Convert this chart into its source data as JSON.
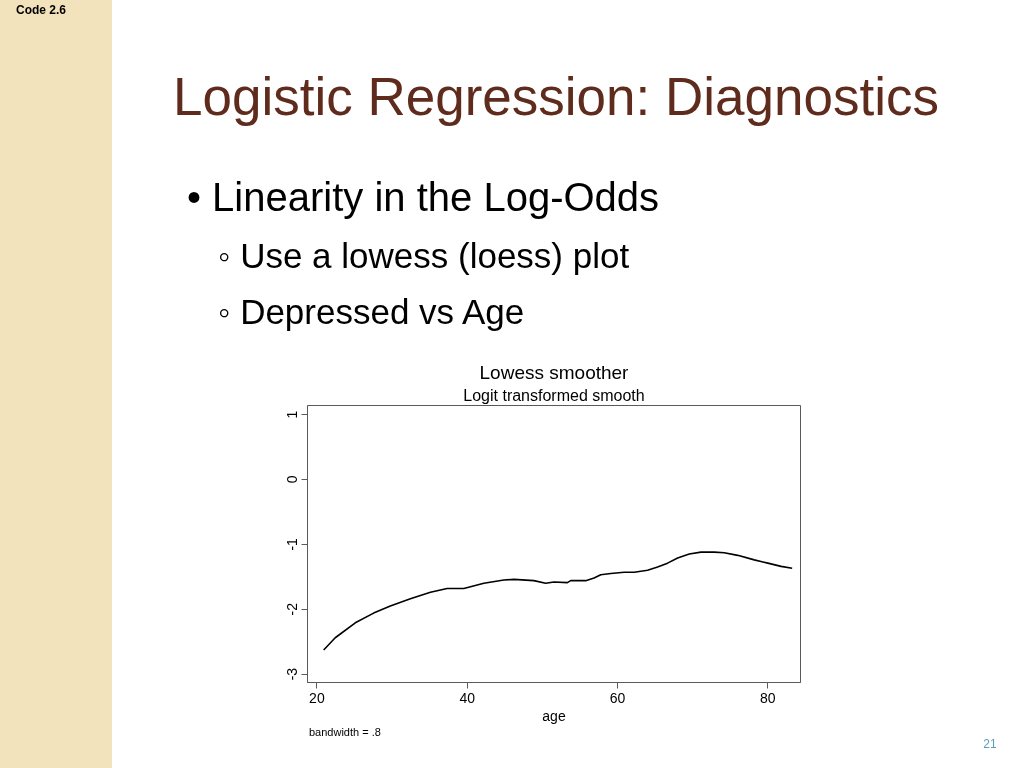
{
  "chart_data": {
    "type": "line",
    "title": "Lowess smoother",
    "subtitle": "Logit transformed smooth",
    "xlabel": "age",
    "x": [
      20.9,
      22.44,
      25.11,
      27.55,
      29.77,
      32.44,
      35.11,
      37.33,
      39.55,
      42.22,
      44.88,
      46.22,
      48.88,
      50.44,
      51.55,
      53.33,
      53.77,
      55.77,
      56.88,
      57.77,
      59.11,
      60.88,
      62.22,
      64.0,
      65.33,
      66.66,
      68.0,
      69.55,
      71.1,
      72.88,
      74.2,
      76.0,
      78.2,
      80.0,
      81.77,
      83.24
    ],
    "series": [
      {
        "color": "#000000",
        "values": [
          -2.63,
          -2.44,
          -2.21,
          -2.06,
          -1.95,
          -1.84,
          -1.74,
          -1.68,
          -1.68,
          -1.6,
          -1.55,
          -1.54,
          -1.56,
          -1.6,
          -1.58,
          -1.59,
          -1.56,
          -1.56,
          -1.52,
          -1.47,
          -1.45,
          -1.43,
          -1.43,
          -1.4,
          -1.35,
          -1.29,
          -1.21,
          -1.15,
          -1.12,
          -1.12,
          -1.13,
          -1.17,
          -1.24,
          -1.29,
          -1.34,
          -1.37
        ]
      }
    ],
    "xlim": [
      18.75,
      84.35
    ],
    "ylim": [
      -3.13,
      1.14
    ],
    "xticks": [
      20,
      40,
      60,
      80
    ],
    "yticks": [
      -3,
      -2,
      -1,
      0,
      1
    ],
    "grid": false,
    "marker": "none",
    "line_style": "solid",
    "annotations": [
      "Code 2.6",
      "Logistic Regression: Diagnostics",
      "• Linearity in the Log-Odds",
      "◦ Use a lowess (loess) plot",
      "◦ Depressed vs Age",
      "bandwidth = .8",
      "21"
    ]
  }
}
